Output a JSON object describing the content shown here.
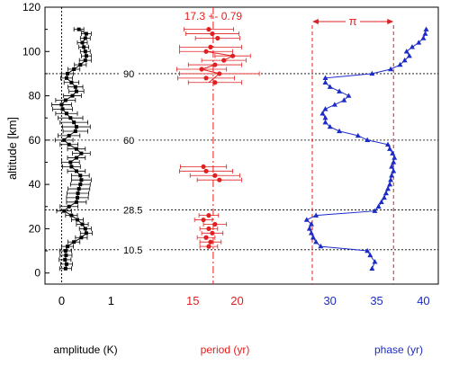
{
  "chart_data": {
    "type": "scatter",
    "ylabel": "altitude [km]",
    "ylim": [
      -5,
      120
    ],
    "yticks": [
      "0",
      "20",
      "40",
      "60",
      "80",
      "100",
      "120"
    ],
    "reference_altitudes": [
      {
        "label": "90",
        "y": 90
      },
      {
        "label": "60",
        "y": 60
      },
      {
        "label": "28.5",
        "y": 28.5
      },
      {
        "label": "10.5",
        "y": 10.5
      }
    ],
    "panels": [
      {
        "id": "amplitude",
        "xlabel": "amplitude  (K)",
        "xlim": [
          -0.3,
          1.45
        ],
        "xticks": [
          "0",
          "1"
        ],
        "color": "#000000",
        "marker": "square",
        "connect": true,
        "vline": 0,
        "points": [
          [
            0.08,
            2
          ],
          [
            0.1,
            4
          ],
          [
            0.07,
            6
          ],
          [
            0.09,
            8
          ],
          [
            0.08,
            10
          ],
          [
            0.12,
            12
          ],
          [
            0.25,
            14
          ],
          [
            0.4,
            16
          ],
          [
            0.5,
            18
          ],
          [
            0.48,
            20
          ],
          [
            0.42,
            22
          ],
          [
            0.32,
            24
          ],
          [
            0.2,
            26
          ],
          [
            0.05,
            28
          ],
          [
            0.15,
            30
          ],
          [
            0.3,
            32
          ],
          [
            0.32,
            34
          ],
          [
            0.33,
            36
          ],
          [
            0.35,
            38
          ],
          [
            0.38,
            40
          ],
          [
            0.4,
            42
          ],
          [
            0.38,
            44
          ],
          [
            0.3,
            46
          ],
          [
            0.2,
            48
          ],
          [
            0.18,
            50
          ],
          [
            0.3,
            52
          ],
          [
            0.4,
            54
          ],
          [
            0.3,
            56
          ],
          [
            0.15,
            58
          ],
          [
            0.05,
            60
          ],
          [
            0.15,
            62
          ],
          [
            0.28,
            64
          ],
          [
            0.3,
            66
          ],
          [
            0.25,
            68
          ],
          [
            0.18,
            70
          ],
          [
            0.1,
            72
          ],
          [
            0.02,
            74
          ],
          [
            0.0,
            76
          ],
          [
            0.08,
            78
          ],
          [
            0.22,
            80
          ],
          [
            0.3,
            82
          ],
          [
            0.28,
            84
          ],
          [
            0.2,
            86
          ],
          [
            0.1,
            88
          ],
          [
            0.12,
            90
          ],
          [
            0.25,
            92
          ],
          [
            0.38,
            94
          ],
          [
            0.48,
            96
          ],
          [
            0.5,
            98
          ],
          [
            0.48,
            100
          ],
          [
            0.45,
            102
          ],
          [
            0.42,
            104
          ],
          [
            0.48,
            106
          ],
          [
            0.5,
            108
          ],
          [
            0.35,
            110
          ]
        ],
        "xerr": [
          0.12,
          0.12,
          0.12,
          0.12,
          0.12,
          0.12,
          0.12,
          0.12,
          0.12,
          0.12,
          0.12,
          0.12,
          0.12,
          0.15,
          0.18,
          0.2,
          0.22,
          0.22,
          0.22,
          0.2,
          0.2,
          0.18,
          0.18,
          0.18,
          0.18,
          0.18,
          0.18,
          0.18,
          0.18,
          0.18,
          0.22,
          0.25,
          0.28,
          0.28,
          0.25,
          0.22,
          0.2,
          0.2,
          0.2,
          0.18,
          0.15,
          0.15,
          0.15,
          0.12,
          0.12,
          0.12,
          0.12,
          0.12,
          0.1,
          0.1,
          0.1,
          0.1,
          0.1,
          0.1,
          0.1
        ]
      },
      {
        "id": "period",
        "xlabel": "period  (yr)",
        "xlim": [
          9.5,
          23.5
        ],
        "xticks": [
          "15",
          "20"
        ],
        "color": "#e02020",
        "marker": "circle",
        "connect": false,
        "vline": 17.3,
        "mean_label": "17.3 +- 0.79",
        "points": [
          [
            16.8,
            12
          ],
          [
            17.0,
            14
          ],
          [
            16.5,
            16
          ],
          [
            17.2,
            18
          ],
          [
            16.8,
            20
          ],
          [
            17.5,
            22
          ],
          [
            16.2,
            24
          ],
          [
            16.8,
            26
          ],
          [
            18.0,
            42
          ],
          [
            17.5,
            44
          ],
          [
            16.5,
            46
          ],
          [
            16.2,
            48
          ],
          [
            17.5,
            86
          ],
          [
            16.5,
            88
          ],
          [
            18.0,
            90
          ],
          [
            16.0,
            92
          ],
          [
            17.5,
            94
          ],
          [
            18.5,
            96
          ],
          [
            19.5,
            98
          ],
          [
            16.5,
            100
          ],
          [
            17.0,
            102
          ],
          [
            17.8,
            106
          ],
          [
            17.2,
            108
          ],
          [
            16.8,
            110
          ]
        ],
        "xerr": [
          1.0,
          1.2,
          1.0,
          1.2,
          1.0,
          1.3,
          1.0,
          1.1,
          2.5,
          2.8,
          3.0,
          2.6,
          3.0,
          3.2,
          4.5,
          2.8,
          3.0,
          2.5,
          2.0,
          3.0,
          3.5,
          2.5,
          3.0,
          2.8
        ],
        "line_segments": [
          [
            [
              16.8,
              86
            ],
            [
              18.0,
              90
            ],
            [
              16.0,
              92
            ],
            [
              17.5,
              94
            ]
          ],
          [
            [
              18.5,
              96
            ],
            [
              19.5,
              98
            ],
            [
              16.5,
              100
            ]
          ]
        ]
      },
      {
        "id": "phase",
        "xlabel": "phase  (yr)",
        "xlim": [
          25.5,
          41.5
        ],
        "xticks": [
          "30",
          "35",
          "40"
        ],
        "color": "#1c2bc8",
        "marker": "triangle",
        "connect": true,
        "vlines": [
          28.1,
          36.8
        ],
        "pi_label": "π",
        "points": [
          [
            34.5,
            2
          ],
          [
            34.8,
            5
          ],
          [
            34.3,
            8
          ],
          [
            34.0,
            10
          ],
          [
            29.0,
            12
          ],
          [
            28.5,
            14
          ],
          [
            28.2,
            16
          ],
          [
            28.0,
            18
          ],
          [
            27.8,
            20
          ],
          [
            28.0,
            22
          ],
          [
            27.5,
            24
          ],
          [
            28.5,
            26
          ],
          [
            34.8,
            28
          ],
          [
            35.2,
            30
          ],
          [
            35.5,
            32
          ],
          [
            35.8,
            34
          ],
          [
            36.0,
            36
          ],
          [
            36.2,
            38
          ],
          [
            36.4,
            40
          ],
          [
            36.5,
            42
          ],
          [
            36.6,
            44
          ],
          [
            36.8,
            46
          ],
          [
            36.6,
            48
          ],
          [
            36.8,
            50
          ],
          [
            36.9,
            52
          ],
          [
            36.7,
            54
          ],
          [
            36.4,
            56
          ],
          [
            36.2,
            58
          ],
          [
            34.0,
            60
          ],
          [
            33.0,
            62
          ],
          [
            31.0,
            64
          ],
          [
            30.0,
            66
          ],
          [
            29.5,
            68
          ],
          [
            29.5,
            70
          ],
          [
            29.2,
            72
          ],
          [
            29.5,
            74
          ],
          [
            30.5,
            76
          ],
          [
            31.5,
            78
          ],
          [
            32.0,
            80
          ],
          [
            31.0,
            82
          ],
          [
            30.0,
            84
          ],
          [
            29.5,
            86
          ],
          [
            29.5,
            88
          ],
          [
            34.5,
            90
          ],
          [
            36.5,
            92
          ],
          [
            37.5,
            94
          ],
          [
            38.0,
            96
          ],
          [
            38.5,
            98
          ],
          [
            38.2,
            100
          ],
          [
            38.8,
            102
          ],
          [
            39.5,
            104
          ],
          [
            40.0,
            106
          ],
          [
            40.2,
            108
          ],
          [
            40.3,
            110
          ]
        ]
      }
    ]
  }
}
